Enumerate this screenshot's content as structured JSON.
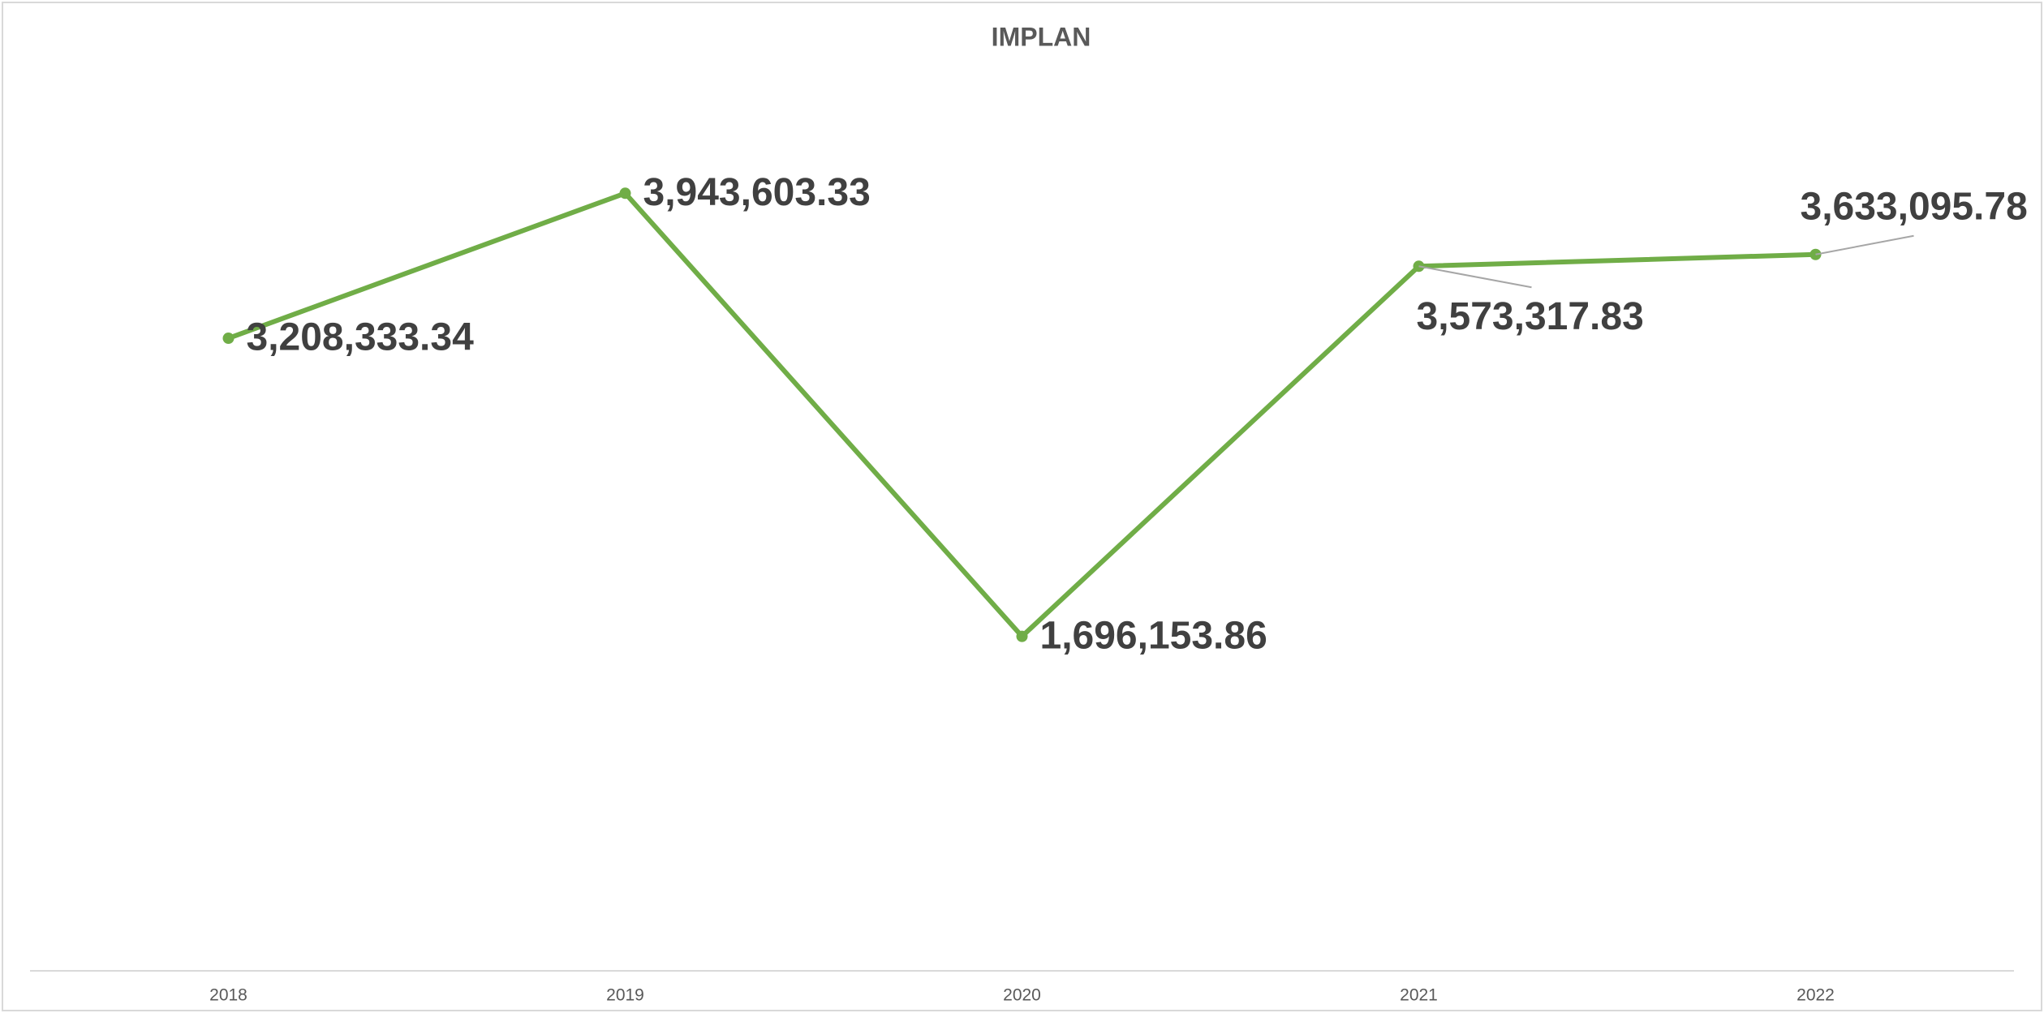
{
  "chart_data": {
    "type": "line",
    "title": "IMPLAN",
    "categories": [
      "2018",
      "2019",
      "2020",
      "2021",
      "2022"
    ],
    "series": [
      {
        "name": "IMPLAN",
        "color": "#70ad47",
        "values": [
          3208333.34,
          3943603.33,
          1696153.86,
          3573317.83,
          3633095.78
        ],
        "value_labels": [
          "3,208,333.34",
          "3,943,603.33",
          "1,696,153.86",
          "3,573,317.83",
          "3,633,095.78"
        ]
      }
    ],
    "ylim": [
      0,
      4500000
    ],
    "grid": false
  }
}
